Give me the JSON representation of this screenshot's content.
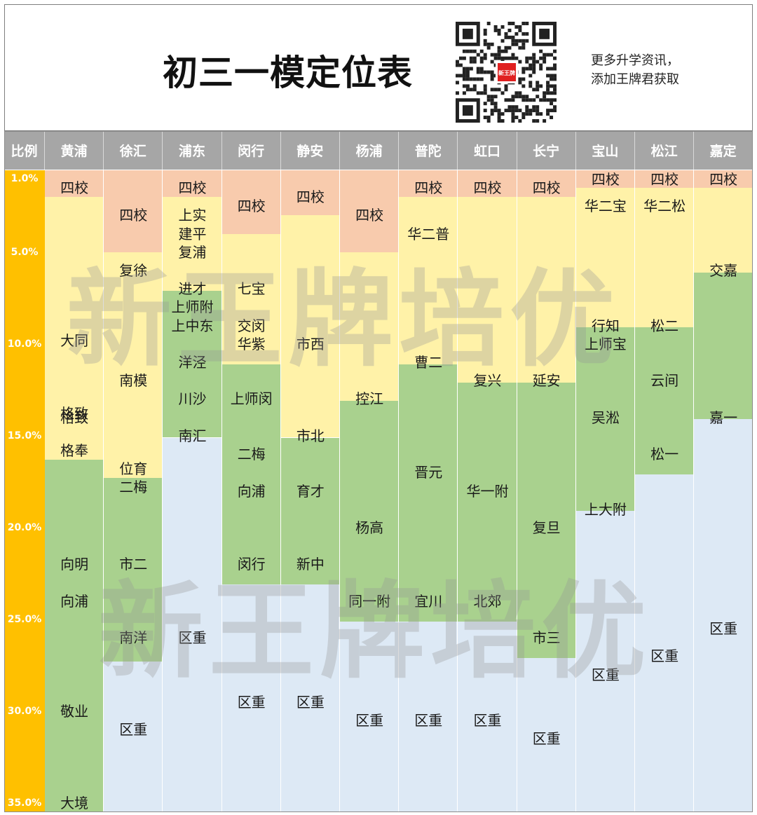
{
  "header": {
    "title": "初三一模定位表",
    "side_lines": [
      "更多升学资讯，",
      "添加王牌君获取"
    ],
    "qr_logo": "新王牌"
  },
  "watermark": "新王牌培优",
  "colors": {
    "四校": "#f8cbad",
    "yellow": "#fff2a8",
    "green": "#a9d18e",
    "blue": "#dde9f5",
    "axis": "#ffc000",
    "header": "#a6a6a6"
  },
  "chart_data": {
    "type": "table",
    "corner_label": "比例",
    "y_ticks": [
      "1.0%",
      "5.0%",
      "10.0%",
      "15.0%",
      "20.0%",
      "25.0%",
      "30.0%",
      "35.0%"
    ],
    "y_range": [
      1.0,
      35.0
    ],
    "columns": [
      {
        "name": "黄浦",
        "segments": [
          {
            "color": "四校",
            "from": 1.0,
            "to": 2.0
          },
          {
            "color": "yellow",
            "from": 2.0,
            "to": 16.3
          },
          {
            "color": "green",
            "from": 16.3,
            "to": 35.0
          }
        ],
        "labels": [
          {
            "text": "四校",
            "at": 1.5
          },
          {
            "text": "大同",
            "at": 9.8
          },
          {
            "text": "格致",
            "at": 13.8
          },
          {
            "text": "格致",
            "at": 14.0
          },
          {
            "text": "格奉",
            "at": 15.8
          },
          {
            "text": "向明",
            "at": 22.0
          },
          {
            "text": "向浦",
            "at": 24.0
          },
          {
            "text": "敬业",
            "at": 30.0
          },
          {
            "text": "大境",
            "at": 35.0
          }
        ]
      },
      {
        "name": "徐汇",
        "segments": [
          {
            "color": "四校",
            "from": 1.0,
            "to": 5.0
          },
          {
            "color": "yellow",
            "from": 5.0,
            "to": 17.3
          },
          {
            "color": "green",
            "from": 17.3,
            "to": 27.3
          },
          {
            "color": "blue",
            "from": 27.3,
            "to": 35.0
          }
        ],
        "labels": [
          {
            "text": "四校",
            "at": 3.0
          },
          {
            "text": "复徐",
            "at": 6.0
          },
          {
            "text": "南模",
            "at": 12.0
          },
          {
            "text": "位育",
            "at": 16.8
          },
          {
            "text": "二梅",
            "at": 17.8
          },
          {
            "text": "市二",
            "at": 22.0
          },
          {
            "text": "南洋",
            "at": 26.0
          },
          {
            "text": "区重",
            "at": 31.0
          }
        ]
      },
      {
        "name": "浦东",
        "segments": [
          {
            "color": "四校",
            "from": 1.0,
            "to": 2.0
          },
          {
            "color": "yellow",
            "from": 2.0,
            "to": 7.1
          },
          {
            "color": "green",
            "from": 7.1,
            "to": 15.1
          },
          {
            "color": "blue",
            "from": 15.1,
            "to": 35.0
          }
        ],
        "labels": [
          {
            "text": "四校",
            "at": 1.5
          },
          {
            "text": "上实",
            "at": 3.0
          },
          {
            "text": "建平",
            "at": 4.0
          },
          {
            "text": "复浦",
            "at": 5.0
          },
          {
            "text": "进才",
            "at": 7.0
          },
          {
            "text": "上师附",
            "at": 8.0
          },
          {
            "text": "上中东",
            "at": 9.0
          },
          {
            "text": "洋泾",
            "at": 11.0
          },
          {
            "text": "川沙",
            "at": 13.0
          },
          {
            "text": "南汇",
            "at": 15.0
          },
          {
            "text": "区重",
            "at": 26.0
          }
        ]
      },
      {
        "name": "闵行",
        "segments": [
          {
            "color": "四校",
            "from": 1.0,
            "to": 4.0
          },
          {
            "color": "yellow",
            "from": 4.0,
            "to": 11.1
          },
          {
            "color": "green",
            "from": 11.1,
            "to": 23.1
          },
          {
            "color": "blue",
            "from": 23.1,
            "to": 35.0
          }
        ],
        "labels": [
          {
            "text": "四校",
            "at": 2.5
          },
          {
            "text": "七宝",
            "at": 7.0
          },
          {
            "text": "交闵",
            "at": 9.0
          },
          {
            "text": "华紫",
            "at": 10.0
          },
          {
            "text": "上师闵",
            "at": 13.0
          },
          {
            "text": "二梅",
            "at": 16.0
          },
          {
            "text": "向浦",
            "at": 18.0
          },
          {
            "text": "闵行",
            "at": 22.0
          },
          {
            "text": "区重",
            "at": 29.5
          }
        ]
      },
      {
        "name": "静安",
        "segments": [
          {
            "color": "四校",
            "from": 1.0,
            "to": 3.0
          },
          {
            "color": "yellow",
            "from": 3.0,
            "to": 15.1
          },
          {
            "color": "green",
            "from": 15.1,
            "to": 23.1
          },
          {
            "color": "blue",
            "from": 23.1,
            "to": 35.0
          }
        ],
        "labels": [
          {
            "text": "四校",
            "at": 2.0
          },
          {
            "text": "市西",
            "at": 10.0
          },
          {
            "text": "市北",
            "at": 15.0
          },
          {
            "text": "育才",
            "at": 18.0
          },
          {
            "text": "新中",
            "at": 22.0
          },
          {
            "text": "区重",
            "at": 29.5
          }
        ]
      },
      {
        "name": "杨浦",
        "segments": [
          {
            "color": "四校",
            "from": 1.0,
            "to": 5.0
          },
          {
            "color": "yellow",
            "from": 5.0,
            "to": 13.1
          },
          {
            "color": "green",
            "from": 13.1,
            "to": 25.1
          },
          {
            "color": "blue",
            "from": 25.1,
            "to": 35.0
          }
        ],
        "labels": [
          {
            "text": "四校",
            "at": 3.0
          },
          {
            "text": "控江",
            "at": 13.0
          },
          {
            "text": "杨高",
            "at": 20.0
          },
          {
            "text": "同一附",
            "at": 24.0
          },
          {
            "text": "区重",
            "at": 30.5
          }
        ]
      },
      {
        "name": "普陀",
        "segments": [
          {
            "color": "四校",
            "from": 1.0,
            "to": 2.0
          },
          {
            "color": "yellow",
            "from": 2.0,
            "to": 11.1
          },
          {
            "color": "green",
            "from": 11.1,
            "to": 25.1
          },
          {
            "color": "blue",
            "from": 25.1,
            "to": 35.0
          }
        ],
        "labels": [
          {
            "text": "四校",
            "at": 1.5
          },
          {
            "text": "华二普",
            "at": 4.0
          },
          {
            "text": "曹二",
            "at": 11.0
          },
          {
            "text": "晋元",
            "at": 17.0
          },
          {
            "text": "宜川",
            "at": 24.0
          },
          {
            "text": "区重",
            "at": 30.5
          }
        ]
      },
      {
        "name": "虹口",
        "segments": [
          {
            "color": "四校",
            "from": 1.0,
            "to": 2.0
          },
          {
            "color": "yellow",
            "from": 2.0,
            "to": 12.1
          },
          {
            "color": "green",
            "from": 12.1,
            "to": 25.1
          },
          {
            "color": "blue",
            "from": 25.1,
            "to": 35.0
          }
        ],
        "labels": [
          {
            "text": "四校",
            "at": 1.5
          },
          {
            "text": "复兴",
            "at": 12.0
          },
          {
            "text": "华一附",
            "at": 18.0
          },
          {
            "text": "北郊",
            "at": 24.0
          },
          {
            "text": "区重",
            "at": 30.5
          }
        ]
      },
      {
        "name": "长宁",
        "segments": [
          {
            "color": "四校",
            "from": 1.0,
            "to": 2.0
          },
          {
            "color": "yellow",
            "from": 2.0,
            "to": 12.1
          },
          {
            "color": "green",
            "from": 12.1,
            "to": 27.1
          },
          {
            "color": "blue",
            "from": 27.1,
            "to": 35.0
          }
        ],
        "labels": [
          {
            "text": "四校",
            "at": 1.5
          },
          {
            "text": "延安",
            "at": 12.0
          },
          {
            "text": "复旦",
            "at": 20.0
          },
          {
            "text": "市三",
            "at": 26.0
          },
          {
            "text": "区重",
            "at": 31.5
          }
        ]
      },
      {
        "name": "宝山",
        "segments": [
          {
            "color": "四校",
            "from": 1.0,
            "to": 1.5
          },
          {
            "color": "yellow",
            "from": 1.5,
            "to": 9.1
          },
          {
            "color": "green",
            "from": 9.1,
            "to": 19.1
          },
          {
            "color": "blue",
            "from": 19.1,
            "to": 35.0
          }
        ],
        "labels": [
          {
            "text": "四校",
            "at": 1.0
          },
          {
            "text": "华二宝",
            "at": 2.5
          },
          {
            "text": "行知",
            "at": 9.0
          },
          {
            "text": "上师宝",
            "at": 10.0
          },
          {
            "text": "吴淞",
            "at": 14.0
          },
          {
            "text": "上大附",
            "at": 19.0
          },
          {
            "text": "区重",
            "at": 28.0
          }
        ]
      },
      {
        "name": "松江",
        "segments": [
          {
            "color": "四校",
            "from": 1.0,
            "to": 1.5
          },
          {
            "color": "yellow",
            "from": 1.5,
            "to": 9.1
          },
          {
            "color": "green",
            "from": 9.1,
            "to": 17.1
          },
          {
            "color": "blue",
            "from": 17.1,
            "to": 35.0
          }
        ],
        "labels": [
          {
            "text": "四校",
            "at": 1.0
          },
          {
            "text": "华二松",
            "at": 2.5
          },
          {
            "text": "松二",
            "at": 9.0
          },
          {
            "text": "云间",
            "at": 12.0
          },
          {
            "text": "松一",
            "at": 16.0
          },
          {
            "text": "区重",
            "at": 27.0
          }
        ]
      },
      {
        "name": "嘉定",
        "segments": [
          {
            "color": "四校",
            "from": 1.0,
            "to": 1.5
          },
          {
            "color": "yellow",
            "from": 1.5,
            "to": 6.1
          },
          {
            "color": "green",
            "from": 6.1,
            "to": 14.1
          },
          {
            "color": "blue",
            "from": 14.1,
            "to": 35.0
          }
        ],
        "labels": [
          {
            "text": "四校",
            "at": 1.0
          },
          {
            "text": "交嘉",
            "at": 6.0
          },
          {
            "text": "嘉一",
            "at": 14.0
          },
          {
            "text": "区重",
            "at": 25.5
          }
        ]
      }
    ]
  }
}
